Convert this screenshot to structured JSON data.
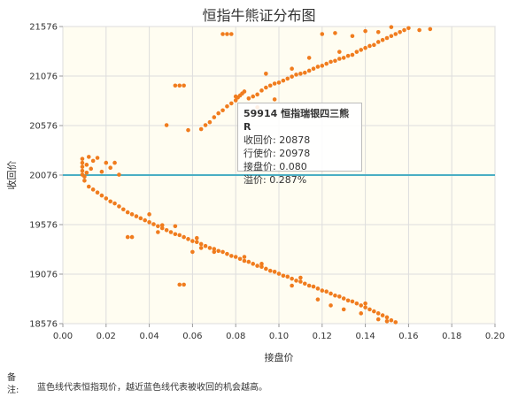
{
  "chart_data": {
    "type": "scatter",
    "title": "恒指牛熊证分布图",
    "xlabel": "接盘价",
    "ylabel": "收回价",
    "xlim": [
      0,
      0.2
    ],
    "ylim": [
      18576,
      21576
    ],
    "x_ticks": [
      "0.00",
      "0.02",
      "0.04",
      "0.06",
      "0.08",
      "0.10",
      "0.12",
      "0.14",
      "0.16",
      "0.18",
      "0.20"
    ],
    "y_ticks": [
      "18576",
      "19076",
      "19576",
      "20076",
      "20576",
      "21076",
      "21576"
    ],
    "reference_line": {
      "y": 20076,
      "color": "#4aaec4"
    },
    "grid": true,
    "point_color": "#f07c1e",
    "series": [
      {
        "points": [
          [
            0.009,
            20080
          ],
          [
            0.009,
            20120
          ],
          [
            0.009,
            20160
          ],
          [
            0.009,
            20200
          ],
          [
            0.009,
            20240
          ],
          [
            0.01,
            20020
          ],
          [
            0.01,
            20060
          ],
          [
            0.011,
            20100
          ],
          [
            0.011,
            20180
          ],
          [
            0.012,
            20260
          ],
          [
            0.013,
            20140
          ],
          [
            0.014,
            20220
          ],
          [
            0.016,
            20250
          ],
          [
            0.018,
            20110
          ],
          [
            0.02,
            20200
          ],
          [
            0.022,
            20150
          ],
          [
            0.024,
            20200
          ],
          [
            0.026,
            20080
          ],
          [
            0.048,
            20580
          ],
          [
            0.058,
            20530
          ],
          [
            0.064,
            20540
          ],
          [
            0.066,
            20580
          ],
          [
            0.068,
            20610
          ],
          [
            0.07,
            20660
          ],
          [
            0.072,
            20700
          ],
          [
            0.074,
            20730
          ],
          [
            0.076,
            20770
          ],
          [
            0.078,
            20800
          ],
          [
            0.08,
            20830
          ],
          [
            0.08,
            20870
          ],
          [
            0.081,
            20860
          ],
          [
            0.082,
            20880
          ],
          [
            0.083,
            20900
          ],
          [
            0.084,
            20920
          ],
          [
            0.086,
            20850
          ],
          [
            0.088,
            20870
          ],
          [
            0.09,
            20890
          ],
          [
            0.092,
            20930
          ],
          [
            0.094,
            20960
          ],
          [
            0.096,
            20980
          ],
          [
            0.098,
            21000
          ],
          [
            0.1,
            21010
          ],
          [
            0.102,
            21030
          ],
          [
            0.104,
            21050
          ],
          [
            0.106,
            21070
          ],
          [
            0.108,
            21090
          ],
          [
            0.11,
            21100
          ],
          [
            0.112,
            21110
          ],
          [
            0.114,
            21130
          ],
          [
            0.116,
            21150
          ],
          [
            0.118,
            21170
          ],
          [
            0.12,
            21180
          ],
          [
            0.122,
            21200
          ],
          [
            0.124,
            21220
          ],
          [
            0.126,
            21230
          ],
          [
            0.128,
            21250
          ],
          [
            0.13,
            21260
          ],
          [
            0.132,
            21280
          ],
          [
            0.134,
            21290
          ],
          [
            0.136,
            21320
          ],
          [
            0.138,
            21340
          ],
          [
            0.14,
            21360
          ],
          [
            0.142,
            21380
          ],
          [
            0.144,
            21390
          ],
          [
            0.146,
            21420
          ],
          [
            0.148,
            21440
          ],
          [
            0.15,
            21460
          ],
          [
            0.152,
            21480
          ],
          [
            0.154,
            21500
          ],
          [
            0.156,
            21520
          ],
          [
            0.158,
            21540
          ],
          [
            0.16,
            21560
          ],
          [
            0.165,
            21540
          ],
          [
            0.17,
            21550
          ],
          [
            0.052,
            20980
          ],
          [
            0.054,
            20980
          ],
          [
            0.056,
            20980
          ],
          [
            0.074,
            21500
          ],
          [
            0.076,
            21500
          ],
          [
            0.078,
            21500
          ],
          [
            0.12,
            21500
          ],
          [
            0.126,
            21510
          ],
          [
            0.134,
            21480
          ],
          [
            0.14,
            21530
          ],
          [
            0.146,
            21520
          ],
          [
            0.152,
            21570
          ],
          [
            0.094,
            21100
          ],
          [
            0.106,
            21150
          ],
          [
            0.114,
            21260
          ],
          [
            0.128,
            21320
          ],
          [
            0.09,
            20760
          ],
          [
            0.098,
            20840
          ],
          [
            0.012,
            19960
          ],
          [
            0.014,
            19930
          ],
          [
            0.016,
            19900
          ],
          [
            0.018,
            19870
          ],
          [
            0.02,
            19840
          ],
          [
            0.022,
            19810
          ],
          [
            0.024,
            19790
          ],
          [
            0.026,
            19760
          ],
          [
            0.028,
            19730
          ],
          [
            0.03,
            19700
          ],
          [
            0.032,
            19680
          ],
          [
            0.034,
            19660
          ],
          [
            0.036,
            19640
          ],
          [
            0.038,
            19620
          ],
          [
            0.04,
            19600
          ],
          [
            0.042,
            19580
          ],
          [
            0.044,
            19560
          ],
          [
            0.046,
            19540
          ],
          [
            0.048,
            19520
          ],
          [
            0.05,
            19500
          ],
          [
            0.052,
            19480
          ],
          [
            0.054,
            19470
          ],
          [
            0.056,
            19450
          ],
          [
            0.058,
            19430
          ],
          [
            0.06,
            19410
          ],
          [
            0.062,
            19400
          ],
          [
            0.064,
            19380
          ],
          [
            0.066,
            19360
          ],
          [
            0.068,
            19340
          ],
          [
            0.07,
            19330
          ],
          [
            0.072,
            19310
          ],
          [
            0.074,
            19300
          ],
          [
            0.076,
            19280
          ],
          [
            0.078,
            19260
          ],
          [
            0.08,
            19250
          ],
          [
            0.082,
            19230
          ],
          [
            0.084,
            19210
          ],
          [
            0.086,
            19200
          ],
          [
            0.088,
            19180
          ],
          [
            0.09,
            19160
          ],
          [
            0.092,
            19150
          ],
          [
            0.094,
            19130
          ],
          [
            0.096,
            19110
          ],
          [
            0.098,
            19100
          ],
          [
            0.1,
            19080
          ],
          [
            0.102,
            19060
          ],
          [
            0.104,
            19050
          ],
          [
            0.106,
            19030
          ],
          [
            0.108,
            19010
          ],
          [
            0.11,
            19000
          ],
          [
            0.112,
            18980
          ],
          [
            0.114,
            18960
          ],
          [
            0.116,
            18950
          ],
          [
            0.118,
            18930
          ],
          [
            0.12,
            18910
          ],
          [
            0.122,
            18900
          ],
          [
            0.124,
            18880
          ],
          [
            0.126,
            18860
          ],
          [
            0.128,
            18850
          ],
          [
            0.13,
            18830
          ],
          [
            0.132,
            18810
          ],
          [
            0.134,
            18800
          ],
          [
            0.136,
            18780
          ],
          [
            0.138,
            18760
          ],
          [
            0.14,
            18740
          ],
          [
            0.142,
            18720
          ],
          [
            0.144,
            18700
          ],
          [
            0.146,
            18680
          ],
          [
            0.148,
            18660
          ],
          [
            0.15,
            18640
          ],
          [
            0.152,
            18610
          ],
          [
            0.154,
            18590
          ],
          [
            0.03,
            19450
          ],
          [
            0.032,
            19450
          ],
          [
            0.054,
            18970
          ],
          [
            0.056,
            18970
          ],
          [
            0.06,
            19300
          ],
          [
            0.064,
            19340
          ],
          [
            0.07,
            19300
          ],
          [
            0.044,
            19500
          ],
          [
            0.046,
            19570
          ],
          [
            0.092,
            19180
          ],
          [
            0.106,
            18960
          ],
          [
            0.118,
            18820
          ],
          [
            0.124,
            18760
          ],
          [
            0.13,
            18720
          ],
          [
            0.138,
            18680
          ],
          [
            0.146,
            18620
          ],
          [
            0.04,
            19680
          ],
          [
            0.052,
            19560
          ],
          [
            0.062,
            19440
          ],
          [
            0.084,
            19250
          ],
          [
            0.11,
            19040
          ],
          [
            0.14,
            18780
          ],
          [
            0.15,
            18600
          ]
        ]
      }
    ]
  },
  "tooltip": {
    "header": "59914  恒指瑞银四三熊 R",
    "rows": [
      "收回价: 20878",
      "行使价: 20978",
      "接盘价: 0.080",
      "溢价: 0.287%"
    ]
  },
  "note": {
    "label": "备\n注:",
    "text": "蓝色线代表恒指现价，越近蓝色线代表被收回的机会越高。"
  }
}
